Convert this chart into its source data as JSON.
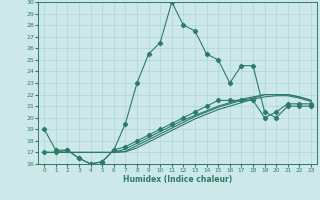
{
  "xlabel": "Humidex (Indice chaleur)",
  "bg_color": "#cde8e8",
  "grid_color": "#aed4d4",
  "line_color": "#2d7a6a",
  "xlim": [
    -0.5,
    23.5
  ],
  "ylim": [
    16,
    30
  ],
  "yticks": [
    16,
    17,
    18,
    19,
    20,
    21,
    22,
    23,
    24,
    25,
    26,
    27,
    28,
    29,
    30
  ],
  "xticks": [
    0,
    1,
    2,
    3,
    4,
    5,
    6,
    7,
    8,
    9,
    10,
    11,
    12,
    13,
    14,
    15,
    16,
    17,
    18,
    19,
    20,
    21,
    22,
    23
  ],
  "s1_x": [
    0,
    1,
    2,
    3,
    4,
    5,
    6,
    7,
    8,
    9,
    10,
    11,
    12,
    13,
    14,
    15,
    16,
    17,
    18,
    19,
    20,
    21,
    22,
    23
  ],
  "s1_y": [
    19,
    17.2,
    17.2,
    16.5,
    16,
    16.2,
    17.2,
    19.5,
    23,
    25.5,
    26.5,
    30,
    28,
    27.5,
    25.5,
    25,
    23,
    24.5,
    24.5,
    20.5,
    20,
    21,
    21,
    21
  ],
  "s2_x": [
    0,
    1,
    2,
    3,
    4,
    5,
    6,
    7,
    8,
    9,
    10,
    11,
    12,
    13,
    14,
    15,
    16,
    17,
    18,
    19,
    20,
    21,
    22,
    23
  ],
  "s2_y": [
    17,
    17,
    17.2,
    16.5,
    16,
    16.2,
    17.2,
    17.5,
    18,
    18.5,
    19,
    19.5,
    20,
    20.5,
    21,
    21.5,
    21.5,
    21.5,
    21.5,
    20,
    20.5,
    21.2,
    21.2,
    21.2
  ],
  "s3_x": [
    0,
    1,
    2,
    3,
    4,
    5,
    6,
    7,
    8,
    9,
    10,
    11,
    12,
    13,
    14,
    15,
    16,
    17,
    18,
    19,
    20,
    21,
    22,
    23
  ],
  "s3_y": [
    17,
    17,
    17,
    17,
    17,
    17,
    17,
    17.3,
    17.8,
    18.3,
    18.8,
    19.3,
    19.8,
    20.2,
    20.6,
    21.0,
    21.3,
    21.6,
    21.8,
    22.0,
    22.0,
    22.0,
    21.8,
    21.5
  ],
  "s4_x": [
    0,
    1,
    2,
    3,
    4,
    5,
    6,
    7,
    8,
    9,
    10,
    11,
    12,
    13,
    14,
    15,
    16,
    17,
    18,
    19,
    20,
    21,
    22,
    23
  ],
  "s4_y": [
    17,
    17,
    17,
    17,
    17,
    17,
    17,
    17.1,
    17.6,
    18.1,
    18.6,
    19.1,
    19.6,
    20.1,
    20.5,
    20.9,
    21.2,
    21.5,
    21.7,
    22.0,
    22.0,
    22.0,
    21.8,
    21.5
  ],
  "s5_x": [
    0,
    1,
    2,
    3,
    4,
    5,
    6,
    7,
    8,
    9,
    10,
    11,
    12,
    13,
    14,
    15,
    16,
    17,
    18,
    19,
    20,
    21,
    22,
    23
  ],
  "s5_y": [
    17,
    17,
    17,
    17,
    17,
    17,
    17,
    17.05,
    17.4,
    17.9,
    18.4,
    18.9,
    19.4,
    19.9,
    20.3,
    20.7,
    21.0,
    21.3,
    21.6,
    21.8,
    21.9,
    21.9,
    21.7,
    21.4
  ]
}
